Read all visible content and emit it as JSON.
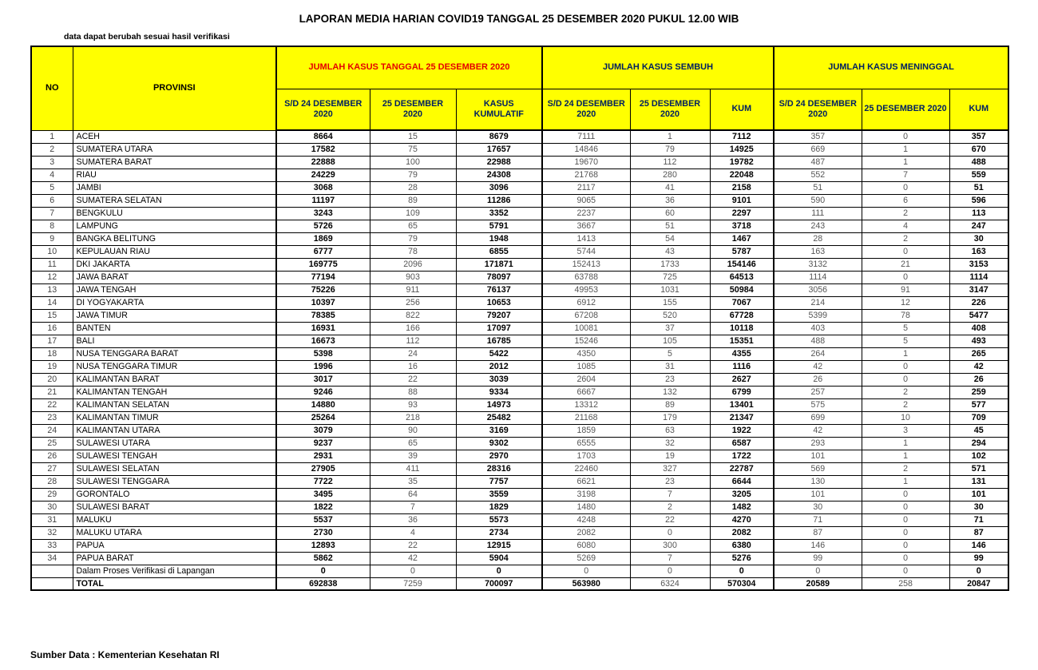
{
  "title": "LAPORAN MEDIA HARIAN COVID19 TANGGAL 25  DESEMBER 2020 PUKUL 12.00 WIB",
  "note": "data dapat berubah sesuai hasil verifikasi",
  "footer": "Sumber Data : Kementerian Kesehatan RI",
  "colors": {
    "header_bg": "#FFFF00",
    "group1_text": "#E50000",
    "group2_text": "#002060",
    "border": "#000000"
  },
  "table": {
    "col_no": "NO",
    "col_provinsi": "PROVINSI",
    "header_groups": [
      "JUMLAH KASUS TANGGAL 25 DESEMBER 2020",
      "JUMLAH KASUS SEMBUH",
      "JUMLAH KASUS MENINGGAL"
    ],
    "sub_headers": [
      "S/D 24 DESEMBER 2020",
      "25 DESEMBER 2020",
      "KASUS KUMULATIF",
      "S/D 24 DESEMBER 2020",
      "25 DESEMBER 2020",
      "KUM",
      "S/D 24 DESEMBER 2020",
      "25 DESEMBER 2020",
      "KUM"
    ],
    "rows": [
      {
        "no": 1,
        "provinsi": "ACEH",
        "values": [
          8664,
          15,
          8679,
          7111,
          1,
          7112,
          357,
          0,
          357
        ]
      },
      {
        "no": 2,
        "provinsi": "SUMATERA UTARA",
        "values": [
          17582,
          75,
          17657,
          14846,
          79,
          14925,
          669,
          1,
          670
        ]
      },
      {
        "no": 3,
        "provinsi": "SUMATERA BARAT",
        "values": [
          22888,
          100,
          22988,
          19670,
          112,
          19782,
          487,
          1,
          488
        ]
      },
      {
        "no": 4,
        "provinsi": "RIAU",
        "values": [
          24229,
          79,
          24308,
          21768,
          280,
          22048,
          552,
          7,
          559
        ]
      },
      {
        "no": 5,
        "provinsi": "JAMBI",
        "values": [
          3068,
          28,
          3096,
          2117,
          41,
          2158,
          51,
          0,
          51
        ]
      },
      {
        "no": 6,
        "provinsi": "SUMATERA SELATAN",
        "values": [
          11197,
          89,
          11286,
          9065,
          36,
          9101,
          590,
          6,
          596
        ]
      },
      {
        "no": 7,
        "provinsi": "BENGKULU",
        "values": [
          3243,
          109,
          3352,
          2237,
          60,
          2297,
          111,
          2,
          113
        ]
      },
      {
        "no": 8,
        "provinsi": "LAMPUNG",
        "values": [
          5726,
          65,
          5791,
          3667,
          51,
          3718,
          243,
          4,
          247
        ]
      },
      {
        "no": 9,
        "provinsi": "BANGKA BELITUNG",
        "values": [
          1869,
          79,
          1948,
          1413,
          54,
          1467,
          28,
          2,
          30
        ]
      },
      {
        "no": 10,
        "provinsi": "KEPULAUAN RIAU",
        "values": [
          6777,
          78,
          6855,
          5744,
          43,
          5787,
          163,
          0,
          163
        ]
      },
      {
        "no": 11,
        "provinsi": "DKI JAKARTA",
        "values": [
          169775,
          2096,
          171871,
          152413,
          1733,
          154146,
          3132,
          21,
          3153
        ]
      },
      {
        "no": 12,
        "provinsi": "JAWA BARAT",
        "values": [
          77194,
          903,
          78097,
          63788,
          725,
          64513,
          1114,
          0,
          1114
        ]
      },
      {
        "no": 13,
        "provinsi": "JAWA TENGAH",
        "values": [
          75226,
          911,
          76137,
          49953,
          1031,
          50984,
          3056,
          91,
          3147
        ]
      },
      {
        "no": 14,
        "provinsi": "DI YOGYAKARTA",
        "values": [
          10397,
          256,
          10653,
          6912,
          155,
          7067,
          214,
          12,
          226
        ]
      },
      {
        "no": 15,
        "provinsi": "JAWA TIMUR",
        "values": [
          78385,
          822,
          79207,
          67208,
          520,
          67728,
          5399,
          78,
          5477
        ]
      },
      {
        "no": 16,
        "provinsi": "BANTEN",
        "values": [
          16931,
          166,
          17097,
          10081,
          37,
          10118,
          403,
          5,
          408
        ]
      },
      {
        "no": 17,
        "provinsi": "BALI",
        "values": [
          16673,
          112,
          16785,
          15246,
          105,
          15351,
          488,
          5,
          493
        ]
      },
      {
        "no": 18,
        "provinsi": "NUSA TENGGARA BARAT",
        "values": [
          5398,
          24,
          5422,
          4350,
          5,
          4355,
          264,
          1,
          265
        ]
      },
      {
        "no": 19,
        "provinsi": "NUSA TENGGARA TIMUR",
        "values": [
          1996,
          16,
          2012,
          1085,
          31,
          1116,
          42,
          0,
          42
        ]
      },
      {
        "no": 20,
        "provinsi": "KALIMANTAN BARAT",
        "values": [
          3017,
          22,
          3039,
          2604,
          23,
          2627,
          26,
          0,
          26
        ]
      },
      {
        "no": 21,
        "provinsi": "KALIMANTAN TENGAH",
        "values": [
          9246,
          88,
          9334,
          6667,
          132,
          6799,
          257,
          2,
          259
        ]
      },
      {
        "no": 22,
        "provinsi": "KALIMANTAN SELATAN",
        "values": [
          14880,
          93,
          14973,
          13312,
          89,
          13401,
          575,
          2,
          577
        ]
      },
      {
        "no": 23,
        "provinsi": "KALIMANTAN TIMUR",
        "values": [
          25264,
          218,
          25482,
          21168,
          179,
          21347,
          699,
          10,
          709
        ]
      },
      {
        "no": 24,
        "provinsi": "KALIMANTAN UTARA",
        "values": [
          3079,
          90,
          3169,
          1859,
          63,
          1922,
          42,
          3,
          45
        ]
      },
      {
        "no": 25,
        "provinsi": "SULAWESI UTARA",
        "values": [
          9237,
          65,
          9302,
          6555,
          32,
          6587,
          293,
          1,
          294
        ]
      },
      {
        "no": 26,
        "provinsi": "SULAWESI TENGAH",
        "values": [
          2931,
          39,
          2970,
          1703,
          19,
          1722,
          101,
          1,
          102
        ]
      },
      {
        "no": 27,
        "provinsi": "SULAWESI SELATAN",
        "values": [
          27905,
          411,
          28316,
          22460,
          327,
          22787,
          569,
          2,
          571
        ]
      },
      {
        "no": 28,
        "provinsi": "SULAWESI TENGGARA",
        "values": [
          7722,
          35,
          7757,
          6621,
          23,
          6644,
          130,
          1,
          131
        ]
      },
      {
        "no": 29,
        "provinsi": "GORONTALO",
        "values": [
          3495,
          64,
          3559,
          3198,
          7,
          3205,
          101,
          0,
          101
        ]
      },
      {
        "no": 30,
        "provinsi": "SULAWESI BARAT",
        "values": [
          1822,
          7,
          1829,
          1480,
          2,
          1482,
          30,
          0,
          30
        ]
      },
      {
        "no": 31,
        "provinsi": "MALUKU",
        "values": [
          5537,
          36,
          5573,
          4248,
          22,
          4270,
          71,
          0,
          71
        ]
      },
      {
        "no": 32,
        "provinsi": "MALUKU UTARA",
        "values": [
          2730,
          4,
          2734,
          2082,
          0,
          2082,
          87,
          0,
          87
        ]
      },
      {
        "no": 33,
        "provinsi": "PAPUA",
        "values": [
          12893,
          22,
          12915,
          6080,
          300,
          6380,
          146,
          0,
          146
        ]
      },
      {
        "no": 34,
        "provinsi": "PAPUA BARAT",
        "values": [
          5862,
          42,
          5904,
          5269,
          7,
          5276,
          99,
          0,
          99
        ]
      }
    ],
    "verification_row": {
      "label": "Dalam Proses Verifikasi di Lapangan",
      "values": [
        0,
        0,
        0,
        0,
        0,
        0,
        0,
        0,
        0
      ]
    },
    "total_row": {
      "label": "TOTAL",
      "values": [
        692838,
        7259,
        700097,
        563980,
        6324,
        570304,
        20589,
        258,
        20847
      ]
    }
  }
}
